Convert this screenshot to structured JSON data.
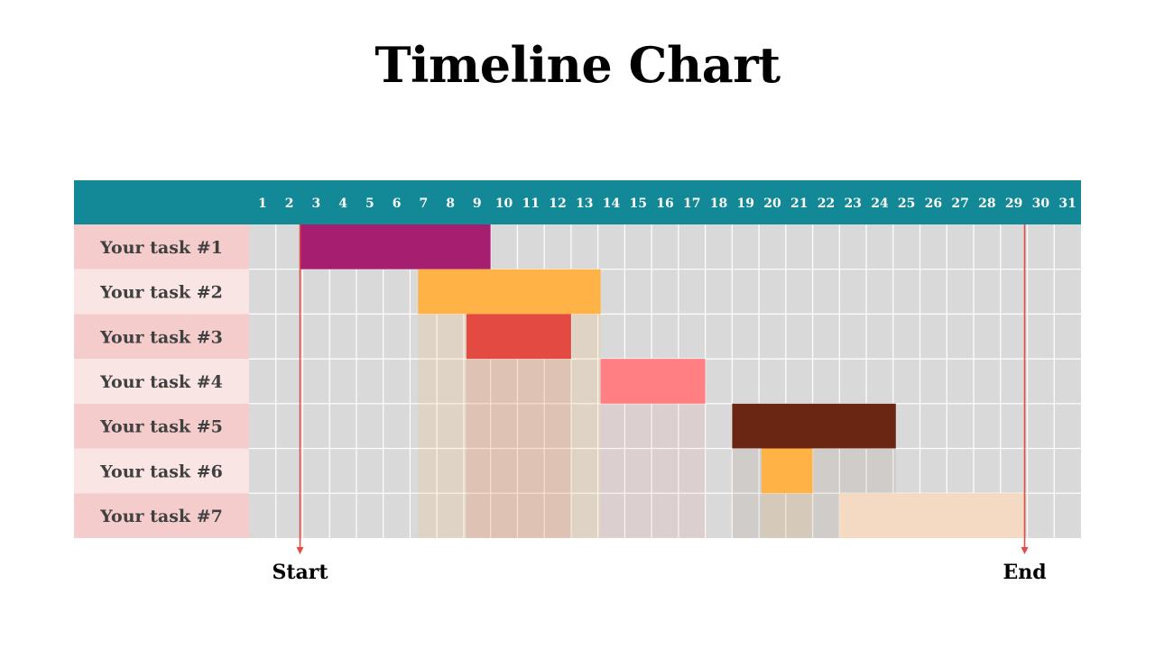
{
  "title": "Timeline Chart",
  "chart_data": {
    "type": "bar",
    "subtype": "gantt",
    "title": "Timeline Chart",
    "days": [
      "1",
      "2",
      "3",
      "4",
      "5",
      "6",
      "7",
      "8",
      "9",
      "10",
      "11",
      "12",
      "13",
      "14",
      "15",
      "16",
      "17",
      "18",
      "19",
      "20",
      "21",
      "22",
      "23",
      "24",
      "25",
      "26",
      "27",
      "28",
      "29",
      "30",
      "31"
    ],
    "tasks": [
      {
        "label": "Your task #1",
        "start": 2.9,
        "end": 10.0,
        "color": "#A61E6F"
      },
      {
        "label": "Your task #2",
        "start": 7.3,
        "end": 14.1,
        "color": "#FFB245"
      },
      {
        "label": "Your task #3",
        "start": 9.1,
        "end": 13.0,
        "color": "#E24A42"
      },
      {
        "label": "Your task #4",
        "start": 14.1,
        "end": 18.0,
        "color": "#FF7F82"
      },
      {
        "label": "Your task #5",
        "start": 19.0,
        "end": 25.1,
        "color": "#6A2612"
      },
      {
        "label": "Your task #6",
        "start": 20.1,
        "end": 22.0,
        "color": "#FFB245"
      },
      {
        "label": "Your task #7",
        "start": 23.0,
        "end": 29.9,
        "color": "#F4DAC2"
      }
    ],
    "shadows": [
      {
        "start": 7.3,
        "end": 14.1,
        "from_row": 3,
        "to_row": 7,
        "color": "#FFB245",
        "opacity": 0.14
      },
      {
        "start": 9.1,
        "end": 13.0,
        "from_row": 4,
        "to_row": 7,
        "color": "#E24A42",
        "opacity": 0.12
      },
      {
        "start": 14.1,
        "end": 18.0,
        "from_row": 5,
        "to_row": 7,
        "color": "#FF7F82",
        "opacity": 0.1
      },
      {
        "start": 19.0,
        "end": 25.1,
        "from_row": 6,
        "to_row": 7,
        "color": "#6A2612",
        "opacity": 0.07
      },
      {
        "start": 20.1,
        "end": 22.0,
        "from_row": 7,
        "to_row": 7,
        "color": "#FFB245",
        "opacity": 0.12
      }
    ],
    "markers": [
      {
        "label": "Start",
        "day": 2.9
      },
      {
        "label": "End",
        "day": 29.9
      }
    ],
    "colors": {
      "header": "#138896",
      "grid_cell": "#D9D9D9",
      "grid_line": "#FFFFFF",
      "label_row_odd": "#F4CCCC",
      "label_row_even": "#FAE5E5",
      "marker": "#E24A42"
    }
  }
}
